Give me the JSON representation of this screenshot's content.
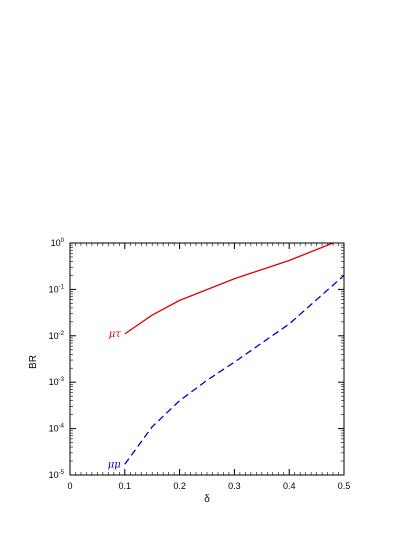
{
  "chart_data": {
    "type": "line",
    "title": "",
    "xlabel": "δ",
    "ylabel": "BR",
    "xlim": [
      0,
      0.5
    ],
    "ylim": [
      1e-05,
      1
    ],
    "yscale": "log",
    "grid": false,
    "x_ticks": [
      0,
      0.1,
      0.2,
      0.3,
      0.4,
      0.5
    ],
    "x_tick_labels": [
      "0",
      "0.1",
      "0.2",
      "0.3",
      "0.4",
      "0.5"
    ],
    "y_ticks": [
      {
        "base": "10",
        "exp": "-5",
        "value": 1e-05
      },
      {
        "base": "10",
        "exp": "-4",
        "value": 0.0001
      },
      {
        "base": "10",
        "exp": "-3",
        "value": 0.001
      },
      {
        "base": "10",
        "exp": "-2",
        "value": 0.01
      },
      {
        "base": "10",
        "exp": "-1",
        "value": 0.1
      },
      {
        "base": "10",
        "exp": "0",
        "value": 1
      }
    ],
    "series": [
      {
        "name": "μτ",
        "color": "#e00000",
        "style": "solid",
        "x": [
          0.1,
          0.15,
          0.2,
          0.3,
          0.4,
          0.48
        ],
        "y": [
          0.011,
          0.028,
          0.058,
          0.17,
          0.42,
          1.0
        ]
      },
      {
        "name": "μμ",
        "color": "#0000d0",
        "style": "dashed",
        "x": [
          0.1,
          0.15,
          0.2,
          0.25,
          0.3,
          0.35,
          0.4,
          0.45,
          0.5
        ],
        "y": [
          1.7e-05,
          0.00011,
          0.0004,
          0.0011,
          0.0027,
          0.007,
          0.018,
          0.06,
          0.2
        ]
      }
    ]
  }
}
